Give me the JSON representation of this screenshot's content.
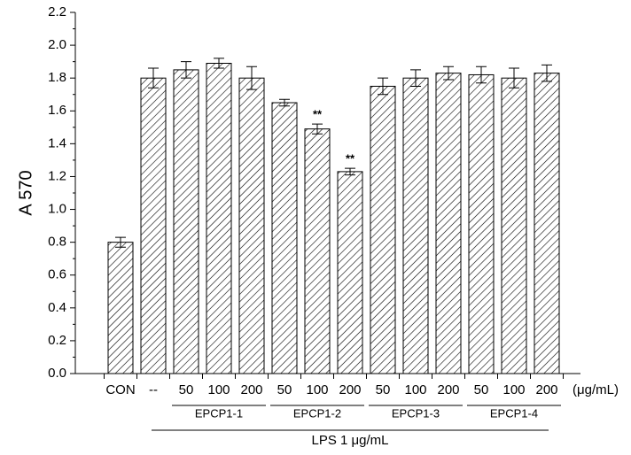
{
  "chart_data": {
    "type": "bar",
    "y_label": "A 570",
    "categories": [
      "CON",
      "--",
      "50",
      "100",
      "200",
      "50",
      "100",
      "200",
      "50",
      "100",
      "200",
      "50",
      "100",
      "200"
    ],
    "x_unit": "(μg/mL)",
    "groups": [
      null,
      null,
      "EPCP1-1",
      "EPCP1-1",
      "EPCP1-1",
      "EPCP1-2",
      "EPCP1-2",
      "EPCP1-2",
      "EPCP1-3",
      "EPCP1-3",
      "EPCP1-3",
      "EPCP1-4",
      "EPCP1-4",
      "EPCP1-4"
    ],
    "treatment": "LPS 1 μg/mL",
    "values": [
      0.8,
      1.8,
      1.85,
      1.89,
      1.8,
      1.65,
      1.49,
      1.23,
      1.75,
      1.8,
      1.83,
      1.82,
      1.8,
      1.83
    ],
    "errors": [
      0.03,
      0.06,
      0.05,
      0.03,
      0.07,
      0.02,
      0.03,
      0.02,
      0.05,
      0.05,
      0.04,
      0.05,
      0.06,
      0.05
    ],
    "significance": [
      null,
      null,
      null,
      null,
      null,
      null,
      "**",
      "**",
      null,
      null,
      null,
      null,
      null,
      null
    ],
    "color": "#000000",
    "ylim": [
      0,
      2.2
    ],
    "yticks": [
      {
        "value": 0,
        "label": "0.0"
      },
      0.2,
      0.4,
      0.6,
      0.8,
      {
        "value": 1,
        "label": "1.0"
      },
      1.2,
      1.4,
      1.6,
      1.8,
      {
        "value": 2,
        "label": "2.0"
      },
      2.2
    ]
  }
}
